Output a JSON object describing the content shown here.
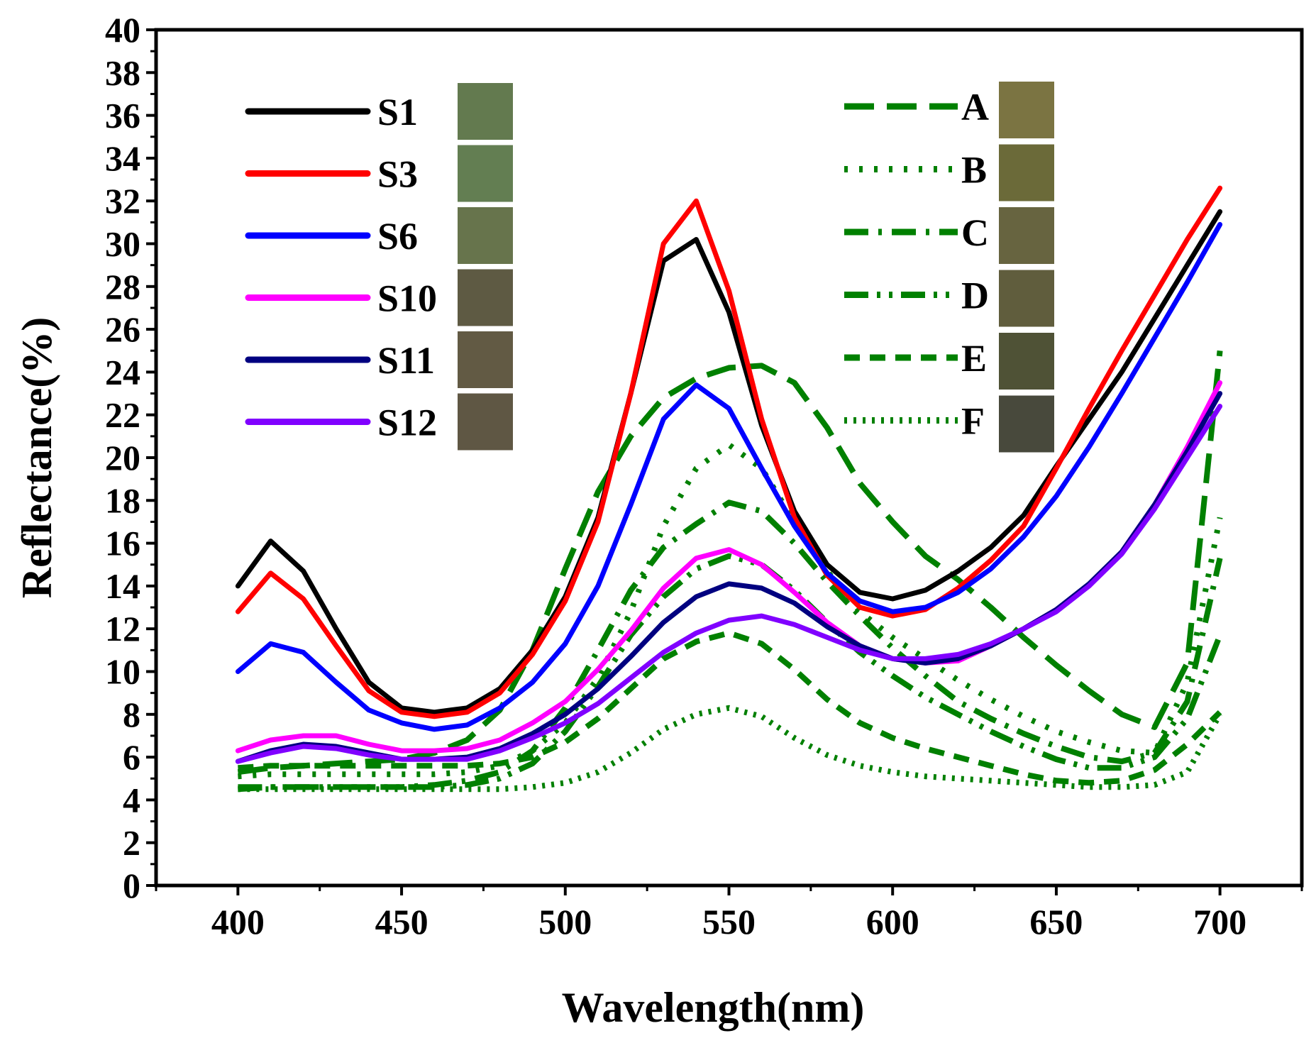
{
  "chart_data": {
    "type": "line",
    "title": "",
    "xlabel": "Wavelength(nm)",
    "ylabel": "Reflectance(%)",
    "xlim": [
      375,
      725
    ],
    "ylim": [
      0,
      40
    ],
    "xticks": [
      400,
      450,
      500,
      550,
      600,
      650,
      700
    ],
    "yticks": [
      0,
      2,
      4,
      6,
      8,
      10,
      12,
      14,
      16,
      18,
      20,
      22,
      24,
      26,
      28,
      30,
      32,
      34,
      36,
      38,
      40
    ],
    "grid": false,
    "legend_placement": "top-left and top-right (two columns with color swatches)",
    "x": [
      400,
      410,
      420,
      430,
      440,
      450,
      460,
      470,
      480,
      490,
      500,
      510,
      520,
      530,
      540,
      550,
      560,
      570,
      580,
      590,
      600,
      610,
      620,
      630,
      640,
      650,
      660,
      670,
      680,
      690,
      700
    ],
    "series": [
      {
        "name": "S1",
        "color": "#000000",
        "dash": "solid",
        "swatch": "#637a4f",
        "values": [
          14.0,
          16.1,
          14.7,
          12.0,
          9.5,
          8.3,
          8.1,
          8.3,
          9.2,
          11.0,
          13.5,
          17.2,
          23.0,
          29.2,
          30.2,
          26.8,
          21.5,
          17.5,
          15.0,
          13.7,
          13.4,
          13.8,
          14.7,
          15.8,
          17.3,
          19.6,
          21.8,
          24.0,
          26.5,
          29.0,
          31.5
        ]
      },
      {
        "name": "S3",
        "color": "#ff0000",
        "dash": "solid",
        "swatch": "#637e52",
        "values": [
          12.8,
          14.6,
          13.4,
          11.2,
          9.1,
          8.1,
          7.9,
          8.1,
          9.0,
          10.8,
          13.3,
          17.0,
          23.0,
          30.0,
          32.0,
          27.8,
          21.8,
          17.2,
          14.5,
          13.0,
          12.6,
          12.9,
          13.9,
          15.2,
          16.8,
          19.5,
          22.3,
          25.0,
          27.6,
          30.2,
          32.6
        ]
      },
      {
        "name": "S6",
        "color": "#0000ff",
        "dash": "solid",
        "swatch": "#67744c",
        "values": [
          10.0,
          11.3,
          10.9,
          9.5,
          8.2,
          7.6,
          7.3,
          7.5,
          8.3,
          9.5,
          11.3,
          14.0,
          17.8,
          21.8,
          23.4,
          22.3,
          19.5,
          16.8,
          14.6,
          13.3,
          12.8,
          13.0,
          13.7,
          14.8,
          16.3,
          18.2,
          20.5,
          23.0,
          25.6,
          28.2,
          30.9
        ]
      },
      {
        "name": "S10",
        "color": "#ff00ff",
        "dash": "solid",
        "swatch": "#5e5a43",
        "values": [
          6.3,
          6.8,
          7.0,
          7.0,
          6.6,
          6.3,
          6.3,
          6.4,
          6.8,
          7.6,
          8.6,
          10.1,
          11.9,
          13.9,
          15.3,
          15.7,
          15.0,
          13.7,
          12.3,
          11.2,
          10.6,
          10.4,
          10.5,
          11.2,
          12.0,
          12.9,
          14.0,
          15.6,
          17.8,
          20.5,
          23.5
        ]
      },
      {
        "name": "S11",
        "color": "#000080",
        "dash": "solid",
        "swatch": "#625a44",
        "values": [
          5.8,
          6.3,
          6.6,
          6.5,
          6.2,
          5.9,
          5.9,
          6.0,
          6.4,
          7.1,
          8.0,
          9.2,
          10.7,
          12.3,
          13.5,
          14.1,
          13.9,
          13.2,
          12.1,
          11.2,
          10.6,
          10.4,
          10.6,
          11.2,
          12.0,
          12.9,
          14.1,
          15.6,
          17.8,
          20.3,
          23.0
        ]
      },
      {
        "name": "S12",
        "color": "#8000ff",
        "dash": "solid",
        "swatch": "#5f5744",
        "values": [
          5.8,
          6.2,
          6.5,
          6.4,
          6.1,
          5.9,
          5.9,
          5.9,
          6.3,
          6.9,
          7.6,
          8.5,
          9.7,
          10.9,
          11.8,
          12.4,
          12.6,
          12.2,
          11.6,
          11.0,
          10.6,
          10.6,
          10.8,
          11.3,
          12.0,
          12.8,
          14.0,
          15.5,
          17.6,
          20.0,
          22.4
        ]
      },
      {
        "name": "A",
        "color": "#008000",
        "dash": "long-dash",
        "swatch": "#7b7442",
        "values": [
          5.3,
          5.5,
          5.6,
          5.7,
          5.8,
          5.9,
          6.2,
          6.8,
          8.2,
          11.0,
          14.8,
          18.4,
          21.0,
          22.8,
          23.7,
          24.2,
          24.3,
          23.5,
          21.4,
          18.8,
          17.0,
          15.4,
          14.3,
          13.0,
          11.6,
          10.3,
          9.1,
          8.0,
          7.4,
          10.4,
          25.0
        ]
      },
      {
        "name": "B",
        "color": "#008000",
        "dash": "dot",
        "swatch": "#6b6a39",
        "values": [
          5.1,
          5.2,
          5.2,
          5.2,
          5.2,
          5.2,
          5.2,
          5.3,
          5.6,
          6.3,
          7.6,
          9.7,
          12.8,
          16.8,
          19.5,
          20.6,
          19.5,
          17.0,
          14.7,
          12.8,
          11.6,
          10.6,
          9.6,
          8.7,
          7.9,
          7.2,
          6.7,
          6.3,
          6.2,
          9.5,
          17.2
        ]
      },
      {
        "name": "C",
        "color": "#008000",
        "dash": "dash-dot",
        "swatch": "#676440",
        "values": [
          4.5,
          4.6,
          4.6,
          4.6,
          4.6,
          4.6,
          4.7,
          4.9,
          5.3,
          6.3,
          8.3,
          11.0,
          13.8,
          15.8,
          16.9,
          17.9,
          17.5,
          16.0,
          14.2,
          12.6,
          11.1,
          9.8,
          8.6,
          7.8,
          7.1,
          6.5,
          6.0,
          5.8,
          6.2,
          8.6,
          15.3
        ]
      },
      {
        "name": "D",
        "color": "#008000",
        "dash": "dash-dot-dot",
        "swatch": "#605d3d",
        "values": [
          4.6,
          4.6,
          4.6,
          4.6,
          4.6,
          4.6,
          4.6,
          4.7,
          5.0,
          5.7,
          7.2,
          9.3,
          11.7,
          13.5,
          14.8,
          15.4,
          15.0,
          13.8,
          12.3,
          10.9,
          9.8,
          8.8,
          8.0,
          7.2,
          6.5,
          5.9,
          5.5,
          5.5,
          6.0,
          7.8,
          11.7
        ]
      },
      {
        "name": "E",
        "color": "#008000",
        "dash": "dash",
        "swatch": "#4f5236",
        "values": [
          5.5,
          5.6,
          5.6,
          5.6,
          5.6,
          5.6,
          5.6,
          5.6,
          5.7,
          6.0,
          6.7,
          7.8,
          9.2,
          10.6,
          11.4,
          11.8,
          11.3,
          10.1,
          8.7,
          7.6,
          6.9,
          6.4,
          6.0,
          5.6,
          5.2,
          4.9,
          4.8,
          4.9,
          5.4,
          6.6,
          8.1
        ]
      },
      {
        "name": "F",
        "color": "#008000",
        "dash": "dense-dot",
        "swatch": "#48493c",
        "values": [
          4.5,
          4.5,
          4.5,
          4.5,
          4.5,
          4.5,
          4.5,
          4.5,
          4.5,
          4.6,
          4.8,
          5.3,
          6.2,
          7.3,
          8.0,
          8.3,
          7.9,
          6.9,
          6.1,
          5.6,
          5.3,
          5.1,
          5.0,
          4.9,
          4.8,
          4.7,
          4.6,
          4.6,
          4.7,
          5.3,
          8.0
        ]
      }
    ]
  }
}
